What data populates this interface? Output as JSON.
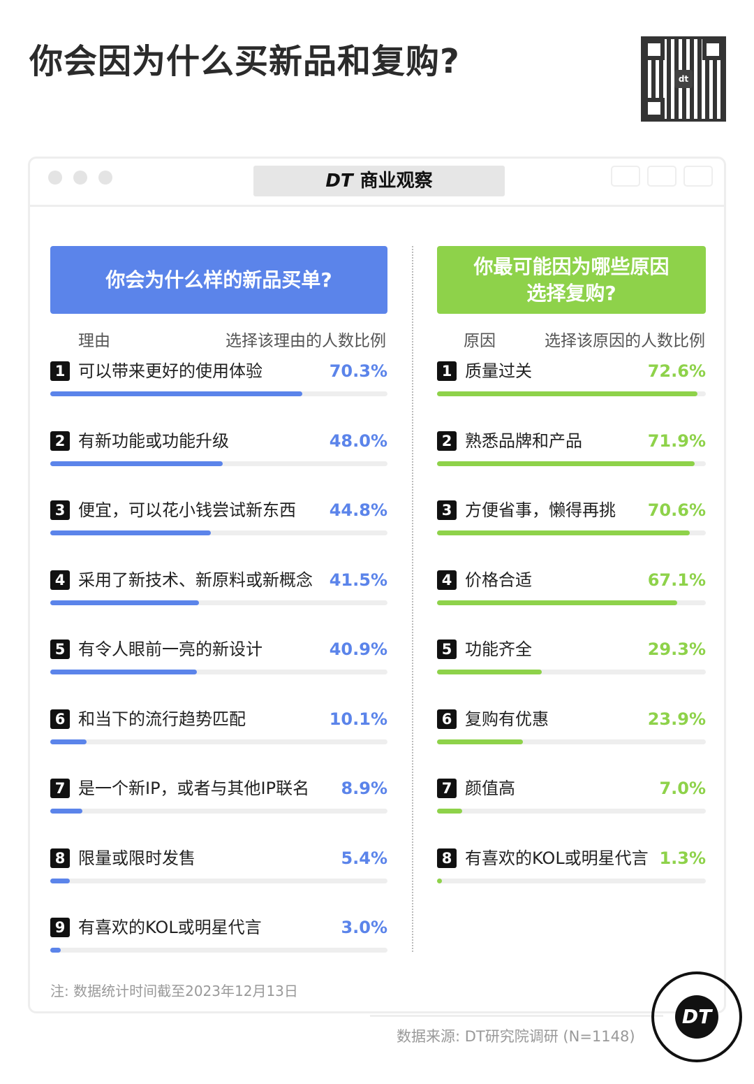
{
  "title": "你会因为什么买新品和复购?",
  "window": {
    "brand_logo": "DT",
    "brand_name": "商业观察"
  },
  "colors": {
    "left": "#5b84ea",
    "right": "#8ed24a",
    "track": "#eeeeee"
  },
  "chart_data": [
    {
      "type": "bar",
      "orientation": "horizontal",
      "title": "你会为什么样的新品买单?",
      "column_headers": [
        "理由",
        "选择该理由的人数比例"
      ],
      "categories": [
        "可以带来更好的使用体验",
        "有新功能或功能升级",
        "便宜，可以花小钱尝试新东西",
        "采用了新技术、新原料或新概念",
        "有令人眼前一亮的新设计",
        "和当下的流行趋势匹配",
        "是一个新IP，或者与其他IP联名",
        "限量或限时发售",
        "有喜欢的KOL或明星代言"
      ],
      "values": [
        70.3,
        48.0,
        44.8,
        41.5,
        40.9,
        10.1,
        8.9,
        5.4,
        3.0
      ],
      "labels": [
        "70.3%",
        "48.0%",
        "44.8%",
        "41.5%",
        "40.9%",
        "10.1%",
        "8.9%",
        "5.4%",
        "3.0%"
      ],
      "xlim": [
        0,
        94
      ],
      "unit": "%"
    },
    {
      "type": "bar",
      "orientation": "horizontal",
      "title": "你最可能因为哪些原因选择复购?",
      "column_headers": [
        "原因",
        "选择该原因的人数比例"
      ],
      "categories": [
        "质量过关",
        "熟悉品牌和产品",
        "方便省事，懒得再挑",
        "价格合适",
        "功能齐全",
        "复购有优惠",
        "颜值高",
        "有喜欢的KOL或明星代言"
      ],
      "values": [
        72.6,
        71.9,
        70.6,
        67.1,
        29.3,
        23.9,
        7.0,
        1.3
      ],
      "labels": [
        "72.6%",
        "71.9%",
        "70.6%",
        "67.1%",
        "29.3%",
        "23.9%",
        "7.0%",
        "1.3%"
      ],
      "xlim": [
        0,
        75
      ],
      "unit": "%"
    }
  ],
  "note": "注: 数据统计时间截至2023年12月13日",
  "source": "数据来源: DT研究院调研 (N=1148)",
  "badge_logo": "DT"
}
